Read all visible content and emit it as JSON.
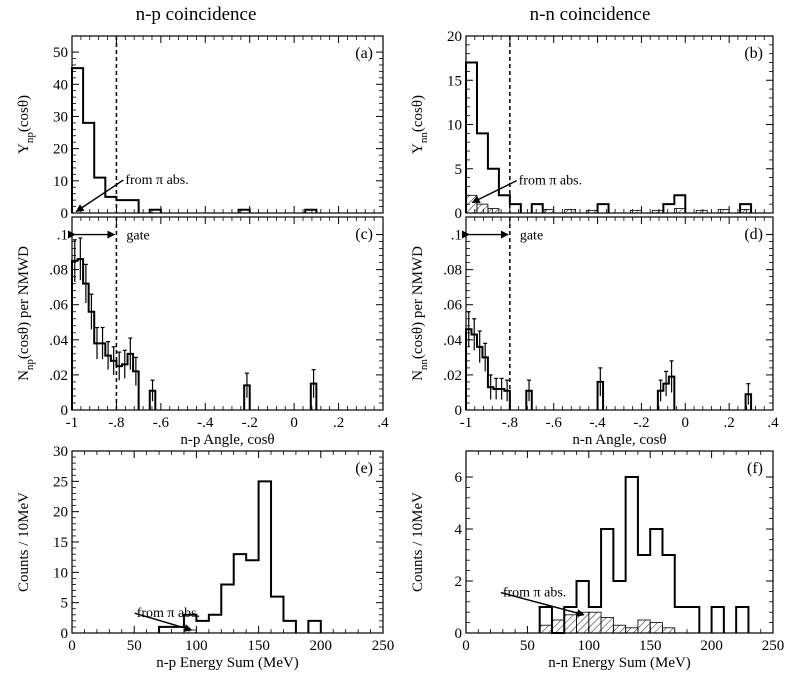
{
  "columns": [
    "n-p coincidence",
    "n-n coincidence"
  ],
  "chart_data": [
    {
      "id": "a",
      "type": "histogram",
      "tag": "(a)",
      "xlim": [
        -1,
        0.4
      ],
      "ylim": [
        0,
        55
      ],
      "yticks": [
        0,
        10,
        20,
        30,
        40,
        50
      ],
      "xticks": [
        -1,
        -0.8,
        -0.6,
        -0.4,
        -0.2,
        0,
        0.2,
        0.4
      ],
      "show_xtick_labels": false,
      "ylabel_main": "Y",
      "ylabel_sub": "np",
      "ylabel_tail": "(cosθ)",
      "bin_width": 0.05,
      "bins": [
        {
          "x": -1.0,
          "y": 45
        },
        {
          "x": -0.95,
          "y": 28
        },
        {
          "x": -0.9,
          "y": 11
        },
        {
          "x": -0.85,
          "y": 5
        },
        {
          "x": -0.8,
          "y": 4
        },
        {
          "x": -0.75,
          "y": 4
        },
        {
          "x": -0.65,
          "y": 1
        },
        {
          "x": -0.25,
          "y": 1
        },
        {
          "x": 0.05,
          "y": 1
        }
      ],
      "gate_x": -0.8,
      "annotation": {
        "text": "from π abs.",
        "text_x": -0.76,
        "text_y": 9,
        "arrow_x": -0.98,
        "arrow_y": 0.5
      }
    },
    {
      "id": "b",
      "type": "histogram",
      "tag": "(b)",
      "xlim": [
        -1,
        0.4
      ],
      "ylim": [
        0,
        20
      ],
      "yticks": [
        0,
        5,
        10,
        15,
        20
      ],
      "xticks": [
        -1,
        -0.8,
        -0.6,
        -0.4,
        -0.2,
        0,
        0.2,
        0.4
      ],
      "show_xtick_labels": false,
      "ylabel_main": "Y",
      "ylabel_sub": "nn",
      "ylabel_tail": "(cosθ)",
      "bin_width": 0.05,
      "bins": [
        {
          "x": -1.0,
          "y": 17
        },
        {
          "x": -0.95,
          "y": 9
        },
        {
          "x": -0.9,
          "y": 5
        },
        {
          "x": -0.85,
          "y": 2
        },
        {
          "x": -0.8,
          "y": 1
        },
        {
          "x": -0.7,
          "y": 1
        },
        {
          "x": -0.4,
          "y": 1
        },
        {
          "x": -0.1,
          "y": 1
        },
        {
          "x": -0.05,
          "y": 2
        },
        {
          "x": 0.25,
          "y": 1
        }
      ],
      "hatched_bins": [
        {
          "x": -1.0,
          "y": 2
        },
        {
          "x": -0.95,
          "y": 1
        },
        {
          "x": -0.9,
          "y": 0.5
        },
        {
          "x": -0.65,
          "y": 0.4
        },
        {
          "x": -0.55,
          "y": 0.4
        },
        {
          "x": -0.45,
          "y": 0.3
        },
        {
          "x": -0.25,
          "y": 0.3
        },
        {
          "x": -0.15,
          "y": 0.3
        },
        {
          "x": -0.05,
          "y": 0.5
        },
        {
          "x": 0.05,
          "y": 0.3
        },
        {
          "x": 0.15,
          "y": 0.4
        },
        {
          "x": 0.25,
          "y": 0.4
        }
      ],
      "gate_x": -0.8,
      "annotation": {
        "text": "from π abs.",
        "text_x": -0.76,
        "text_y": 3.2,
        "arrow_x": -0.97,
        "arrow_y": 1.2
      }
    },
    {
      "id": "c",
      "type": "histogram_errorbars",
      "tag": "(c)",
      "xlim": [
        -1,
        0.4
      ],
      "ylim": [
        0,
        0.11
      ],
      "yticks": [
        0,
        0.02,
        0.04,
        0.06,
        0.08,
        0.1
      ],
      "xticks": [
        -1,
        -0.8,
        -0.6,
        -0.4,
        -0.2,
        0,
        0.2,
        0.4
      ],
      "show_xtick_labels": true,
      "ylabel_main": "N",
      "ylabel_sub": "np",
      "ylabel_tail": "(cosθ) per NMWD",
      "xlabel": "n-p Angle, cosθ",
      "bin_width": 0.025,
      "bins": [
        {
          "x": -1.0,
          "y": 0.085,
          "err": 0.012
        },
        {
          "x": -0.975,
          "y": 0.086,
          "err": 0.012
        },
        {
          "x": -0.95,
          "y": 0.072,
          "err": 0.011
        },
        {
          "x": -0.925,
          "y": 0.056,
          "err": 0.01
        },
        {
          "x": -0.9,
          "y": 0.038,
          "err": 0.009
        },
        {
          "x": -0.875,
          "y": 0.038,
          "err": 0.009
        },
        {
          "x": -0.85,
          "y": 0.031,
          "err": 0.008
        },
        {
          "x": -0.825,
          "y": 0.028,
          "err": 0.008
        },
        {
          "x": -0.8,
          "y": 0.025,
          "err": 0.008
        },
        {
          "x": -0.775,
          "y": 0.026,
          "err": 0.008
        },
        {
          "x": -0.75,
          "y": 0.032,
          "err": 0.009
        },
        {
          "x": -0.725,
          "y": 0.022,
          "err": 0.008
        },
        {
          "x": -0.65,
          "y": 0.011,
          "err": 0.006
        },
        {
          "x": -0.225,
          "y": 0.014,
          "err": 0.007
        },
        {
          "x": 0.075,
          "y": 0.015,
          "err": 0.008
        }
      ],
      "gate_x": -0.8,
      "gate_label": "gate",
      "gate_arrow_y": 0.1
    },
    {
      "id": "d",
      "type": "histogram_errorbars",
      "tag": "(d)",
      "xlim": [
        -1,
        0.4
      ],
      "ylim": [
        0,
        0.11
      ],
      "yticks": [
        0,
        0.02,
        0.04,
        0.06,
        0.08,
        0.1
      ],
      "xticks": [
        -1,
        -0.8,
        -0.6,
        -0.4,
        -0.2,
        0,
        0.2,
        0.4
      ],
      "show_xtick_labels": true,
      "ylabel_main": "N",
      "ylabel_sub": "nn",
      "ylabel_tail": "(cosθ) per NMWD",
      "xlabel": "n-n Angle, cosθ",
      "bin_width": 0.025,
      "bins": [
        {
          "x": -1.0,
          "y": 0.046,
          "err": 0.01
        },
        {
          "x": -0.975,
          "y": 0.043,
          "err": 0.009
        },
        {
          "x": -0.95,
          "y": 0.036,
          "err": 0.009
        },
        {
          "x": -0.925,
          "y": 0.03,
          "err": 0.008
        },
        {
          "x": -0.9,
          "y": 0.013,
          "err": 0.007
        },
        {
          "x": -0.875,
          "y": 0.012,
          "err": 0.006
        },
        {
          "x": -0.85,
          "y": 0.012,
          "err": 0.006
        },
        {
          "x": -0.825,
          "y": 0.011,
          "err": 0.006
        },
        {
          "x": -0.725,
          "y": 0.011,
          "err": 0.006
        },
        {
          "x": -0.4,
          "y": 0.016,
          "err": 0.008
        },
        {
          "x": -0.125,
          "y": 0.011,
          "err": 0.006
        },
        {
          "x": -0.1,
          "y": 0.015,
          "err": 0.007
        },
        {
          "x": -0.075,
          "y": 0.019,
          "err": 0.009
        },
        {
          "x": 0.275,
          "y": 0.009,
          "err": 0.006
        }
      ],
      "gate_x": -0.8,
      "gate_label": "gate",
      "gate_arrow_y": 0.1
    },
    {
      "id": "e",
      "type": "histogram",
      "tag": "(e)",
      "xlim": [
        0,
        250
      ],
      "ylim": [
        0,
        30
      ],
      "yticks": [
        0,
        5,
        10,
        15,
        20,
        25,
        30
      ],
      "xticks": [
        0,
        50,
        100,
        150,
        200,
        250
      ],
      "show_xtick_labels": true,
      "ylabel_main": "Counts / 10MeV",
      "ylabel_sub": "",
      "ylabel_tail": "",
      "xlabel": "n-p Energy Sum  (MeV)",
      "bin_width": 10,
      "bins": [
        {
          "x": 70,
          "y": 1
        },
        {
          "x": 80,
          "y": 1
        },
        {
          "x": 90,
          "y": 3
        },
        {
          "x": 100,
          "y": 2
        },
        {
          "x": 110,
          "y": 3
        },
        {
          "x": 120,
          "y": 8
        },
        {
          "x": 130,
          "y": 13
        },
        {
          "x": 140,
          "y": 12
        },
        {
          "x": 150,
          "y": 25
        },
        {
          "x": 160,
          "y": 6
        },
        {
          "x": 170,
          "y": 2
        },
        {
          "x": 190,
          "y": 2
        }
      ],
      "hatched_bins": [
        {
          "x": 90,
          "y": 0.5
        }
      ],
      "annotation": {
        "text": "from π abs.",
        "text_x": 52,
        "text_y": 2.6,
        "arrow_x": 96,
        "arrow_y": 0.5
      }
    },
    {
      "id": "f",
      "type": "histogram",
      "tag": "(f)",
      "xlim": [
        0,
        250
      ],
      "ylim": [
        0,
        7
      ],
      "yticks": [
        0,
        2,
        4,
        6
      ],
      "xticks": [
        0,
        50,
        100,
        150,
        200,
        250
      ],
      "show_xtick_labels": true,
      "ylabel_main": "Counts / 10MeV",
      "ylabel_sub": "",
      "ylabel_tail": "",
      "xlabel": "n-n Energy Sum  (MeV)",
      "bin_width": 10,
      "bins": [
        {
          "x": 60,
          "y": 1
        },
        {
          "x": 70,
          "y": 0
        },
        {
          "x": 80,
          "y": 1
        },
        {
          "x": 90,
          "y": 2
        },
        {
          "x": 100,
          "y": 1
        },
        {
          "x": 110,
          "y": 4
        },
        {
          "x": 120,
          "y": 2
        },
        {
          "x": 130,
          "y": 6
        },
        {
          "x": 140,
          "y": 3
        },
        {
          "x": 150,
          "y": 4
        },
        {
          "x": 160,
          "y": 3
        },
        {
          "x": 170,
          "y": 1
        },
        {
          "x": 180,
          "y": 1
        },
        {
          "x": 200,
          "y": 1
        },
        {
          "x": 220,
          "y": 1
        }
      ],
      "hatched_bins": [
        {
          "x": 60,
          "y": 0.3
        },
        {
          "x": 70,
          "y": 0.5
        },
        {
          "x": 80,
          "y": 0.7
        },
        {
          "x": 90,
          "y": 0.8
        },
        {
          "x": 100,
          "y": 0.8
        },
        {
          "x": 110,
          "y": 0.6
        },
        {
          "x": 120,
          "y": 0.3
        },
        {
          "x": 130,
          "y": 0.2
        },
        {
          "x": 140,
          "y": 0.5
        },
        {
          "x": 150,
          "y": 0.4
        },
        {
          "x": 160,
          "y": 0.2
        }
      ],
      "annotation": {
        "text": "from π abs.",
        "text_x": 30,
        "text_y": 1.4,
        "arrow_x": 96,
        "arrow_y": 0.7
      }
    }
  ]
}
